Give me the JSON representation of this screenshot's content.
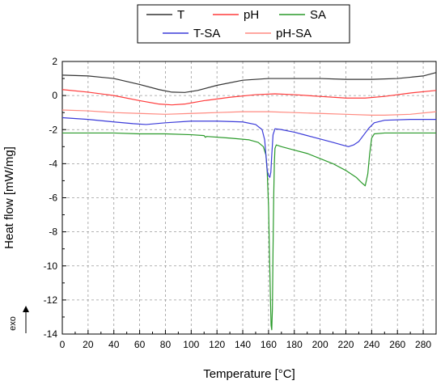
{
  "chart_data": {
    "type": "line",
    "xlabel": "Temperature [°C]",
    "ylabel": "Heat flow [mW/mg]",
    "xlim": [
      0,
      290
    ],
    "ylim": [
      -14,
      2
    ],
    "x_ticks": [
      0,
      20,
      40,
      60,
      80,
      100,
      120,
      140,
      160,
      180,
      200,
      220,
      240,
      260,
      280
    ],
    "y_ticks": [
      2,
      0,
      -2,
      -4,
      -6,
      -8,
      -10,
      -12,
      -14
    ],
    "grid": true,
    "legend_position": "top-center",
    "exo_label": "exo",
    "series": [
      {
        "name": "T",
        "color": "#333333",
        "points": [
          [
            0,
            1.2
          ],
          [
            20,
            1.15
          ],
          [
            40,
            1.0
          ],
          [
            60,
            0.65
          ],
          [
            75,
            0.35
          ],
          [
            85,
            0.2
          ],
          [
            95,
            0.18
          ],
          [
            105,
            0.3
          ],
          [
            120,
            0.6
          ],
          [
            140,
            0.9
          ],
          [
            160,
            1.0
          ],
          [
            180,
            1.0
          ],
          [
            200,
            1.0
          ],
          [
            220,
            0.95
          ],
          [
            240,
            0.95
          ],
          [
            260,
            1.0
          ],
          [
            280,
            1.15
          ],
          [
            290,
            1.35
          ]
        ]
      },
      {
        "name": "pH",
        "color": "#ff3b3b",
        "points": [
          [
            0,
            0.35
          ],
          [
            20,
            0.2
          ],
          [
            40,
            0.0
          ],
          [
            60,
            -0.3
          ],
          [
            75,
            -0.5
          ],
          [
            85,
            -0.55
          ],
          [
            95,
            -0.5
          ],
          [
            110,
            -0.3
          ],
          [
            130,
            -0.1
          ],
          [
            150,
            0.05
          ],
          [
            165,
            0.1
          ],
          [
            180,
            0.05
          ],
          [
            200,
            -0.05
          ],
          [
            220,
            -0.15
          ],
          [
            235,
            -0.15
          ],
          [
            250,
            -0.05
          ],
          [
            270,
            0.15
          ],
          [
            290,
            0.3
          ]
        ]
      },
      {
        "name": "SA",
        "color": "#2a9a2a",
        "points": [
          [
            0,
            -2.2
          ],
          [
            20,
            -2.2
          ],
          [
            40,
            -2.2
          ],
          [
            60,
            -2.25
          ],
          [
            80,
            -2.25
          ],
          [
            100,
            -2.3
          ],
          [
            110,
            -2.35
          ],
          [
            111,
            -2.45
          ],
          [
            112,
            -2.4
          ],
          [
            130,
            -2.5
          ],
          [
            145,
            -2.6
          ],
          [
            152,
            -2.75
          ],
          [
            156,
            -3.0
          ],
          [
            158,
            -3.5
          ],
          [
            159,
            -4.5
          ],
          [
            160,
            -6.5
          ],
          [
            160.8,
            -9.5
          ],
          [
            161.5,
            -12.0
          ],
          [
            162,
            -13.5
          ],
          [
            162.5,
            -13.75
          ],
          [
            163,
            -12.5
          ],
          [
            163.5,
            -9.0
          ],
          [
            164,
            -6.0
          ],
          [
            164.5,
            -4.0
          ],
          [
            165,
            -3.1
          ],
          [
            166,
            -2.9
          ],
          [
            170,
            -3.0
          ],
          [
            180,
            -3.2
          ],
          [
            190,
            -3.4
          ],
          [
            200,
            -3.7
          ],
          [
            210,
            -4.0
          ],
          [
            220,
            -4.4
          ],
          [
            228,
            -4.8
          ],
          [
            232,
            -5.1
          ],
          [
            235,
            -5.3
          ],
          [
            237,
            -4.6
          ],
          [
            238.5,
            -3.4
          ],
          [
            240,
            -2.5
          ],
          [
            242,
            -2.25
          ],
          [
            250,
            -2.2
          ],
          [
            270,
            -2.2
          ],
          [
            290,
            -2.2
          ]
        ]
      },
      {
        "name": "T-SA",
        "color": "#3b3bd9",
        "points": [
          [
            0,
            -1.3
          ],
          [
            20,
            -1.4
          ],
          [
            40,
            -1.55
          ],
          [
            55,
            -1.65
          ],
          [
            65,
            -1.7
          ],
          [
            80,
            -1.6
          ],
          [
            100,
            -1.5
          ],
          [
            120,
            -1.5
          ],
          [
            140,
            -1.55
          ],
          [
            150,
            -1.7
          ],
          [
            155,
            -2.0
          ],
          [
            157,
            -2.6
          ],
          [
            158,
            -3.5
          ],
          [
            159,
            -4.4
          ],
          [
            160,
            -4.7
          ],
          [
            161,
            -4.8
          ],
          [
            161.8,
            -4.5
          ],
          [
            162.5,
            -3.5
          ],
          [
            163.5,
            -2.3
          ],
          [
            165,
            -1.95
          ],
          [
            170,
            -2.0
          ],
          [
            180,
            -2.15
          ],
          [
            190,
            -2.35
          ],
          [
            200,
            -2.55
          ],
          [
            210,
            -2.75
          ],
          [
            217,
            -2.9
          ],
          [
            222,
            -3.0
          ],
          [
            226,
            -2.9
          ],
          [
            230,
            -2.7
          ],
          [
            234,
            -2.3
          ],
          [
            238,
            -1.9
          ],
          [
            242,
            -1.6
          ],
          [
            250,
            -1.45
          ],
          [
            270,
            -1.4
          ],
          [
            290,
            -1.4
          ]
        ]
      },
      {
        "name": "pH-SA",
        "color": "#ff8a80",
        "points": [
          [
            0,
            -0.85
          ],
          [
            20,
            -0.9
          ],
          [
            40,
            -1.0
          ],
          [
            60,
            -1.05
          ],
          [
            80,
            -1.1
          ],
          [
            100,
            -1.05
          ],
          [
            120,
            -1.0
          ],
          [
            140,
            -0.95
          ],
          [
            160,
            -0.95
          ],
          [
            180,
            -1.0
          ],
          [
            200,
            -1.05
          ],
          [
            220,
            -1.1
          ],
          [
            240,
            -1.15
          ],
          [
            250,
            -1.15
          ],
          [
            270,
            -1.1
          ],
          [
            290,
            -0.95
          ]
        ]
      }
    ]
  }
}
